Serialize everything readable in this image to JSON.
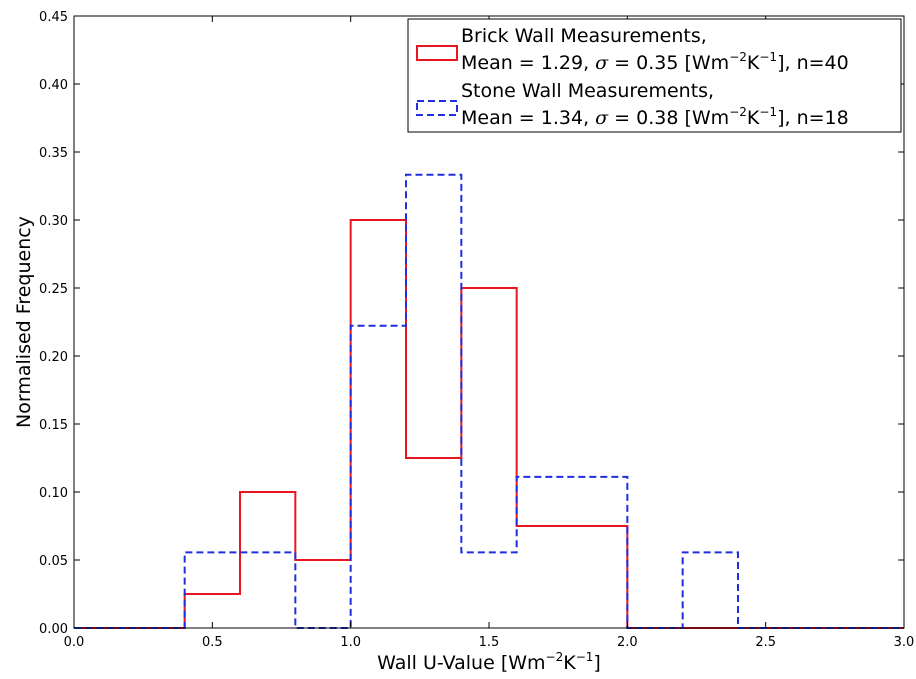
{
  "chart_data": {
    "type": "histogram",
    "xlabel": "Wall U-Value [Wm⁻²K⁻¹]",
    "xlabel_parts": [
      "Wall U-Value [Wm",
      "−2",
      "K",
      "−1",
      "]"
    ],
    "ylabel": "Normalised Frequency",
    "xlim": [
      0.0,
      3.0
    ],
    "ylim": [
      0.0,
      0.45
    ],
    "x_ticks": [
      "0.0",
      "0.5",
      "1.0",
      "1.5",
      "2.0",
      "2.5",
      "3.0"
    ],
    "y_ticks": [
      "0.00",
      "0.05",
      "0.10",
      "0.15",
      "0.20",
      "0.25",
      "0.30",
      "0.35",
      "0.40",
      "0.45"
    ],
    "legend_position": "top-right",
    "grid": false,
    "series": [
      {
        "name": "Brick Wall Measurements, Mean = 1.29, σ = 0.35 [Wm⁻²K⁻¹], n=40",
        "legend_line1": "Brick Wall Measurements,",
        "legend_line2_parts": [
          "Mean = 1.29, ",
          "σ",
          " = 0.35 [Wm",
          "−2",
          "K",
          "−1",
          "], n=40"
        ],
        "color": "#e8161f",
        "dash": "solid",
        "bin_edges": [
          0.0,
          0.4,
          0.6,
          0.8,
          1.0,
          1.2,
          1.4,
          1.6,
          2.0,
          3.0
        ],
        "values": [
          0.0,
          0.025,
          0.1,
          0.05,
          0.3,
          0.125,
          0.25,
          0.075,
          0.0
        ]
      },
      {
        "name": "Stone Wall Measurements, Mean = 1.34, σ = 0.38 [Wm⁻²K⁻¹], n=18",
        "legend_line1": "Stone Wall Measurements,",
        "legend_line2_parts": [
          "Mean = 1.34, ",
          "σ",
          " = 0.38 [Wm",
          "−2",
          "K",
          "−1",
          "], n=18"
        ],
        "color": "#1f2fe0",
        "dash": "dashed",
        "bin_edges": [
          0.0,
          0.4,
          0.8,
          1.0,
          1.2,
          1.4,
          1.6,
          2.0,
          2.2,
          2.4,
          3.0
        ],
        "values": [
          0.0,
          0.0556,
          0.0,
          0.2222,
          0.3333,
          0.0556,
          0.1111,
          0.0,
          0.0556,
          0.0
        ]
      }
    ]
  }
}
